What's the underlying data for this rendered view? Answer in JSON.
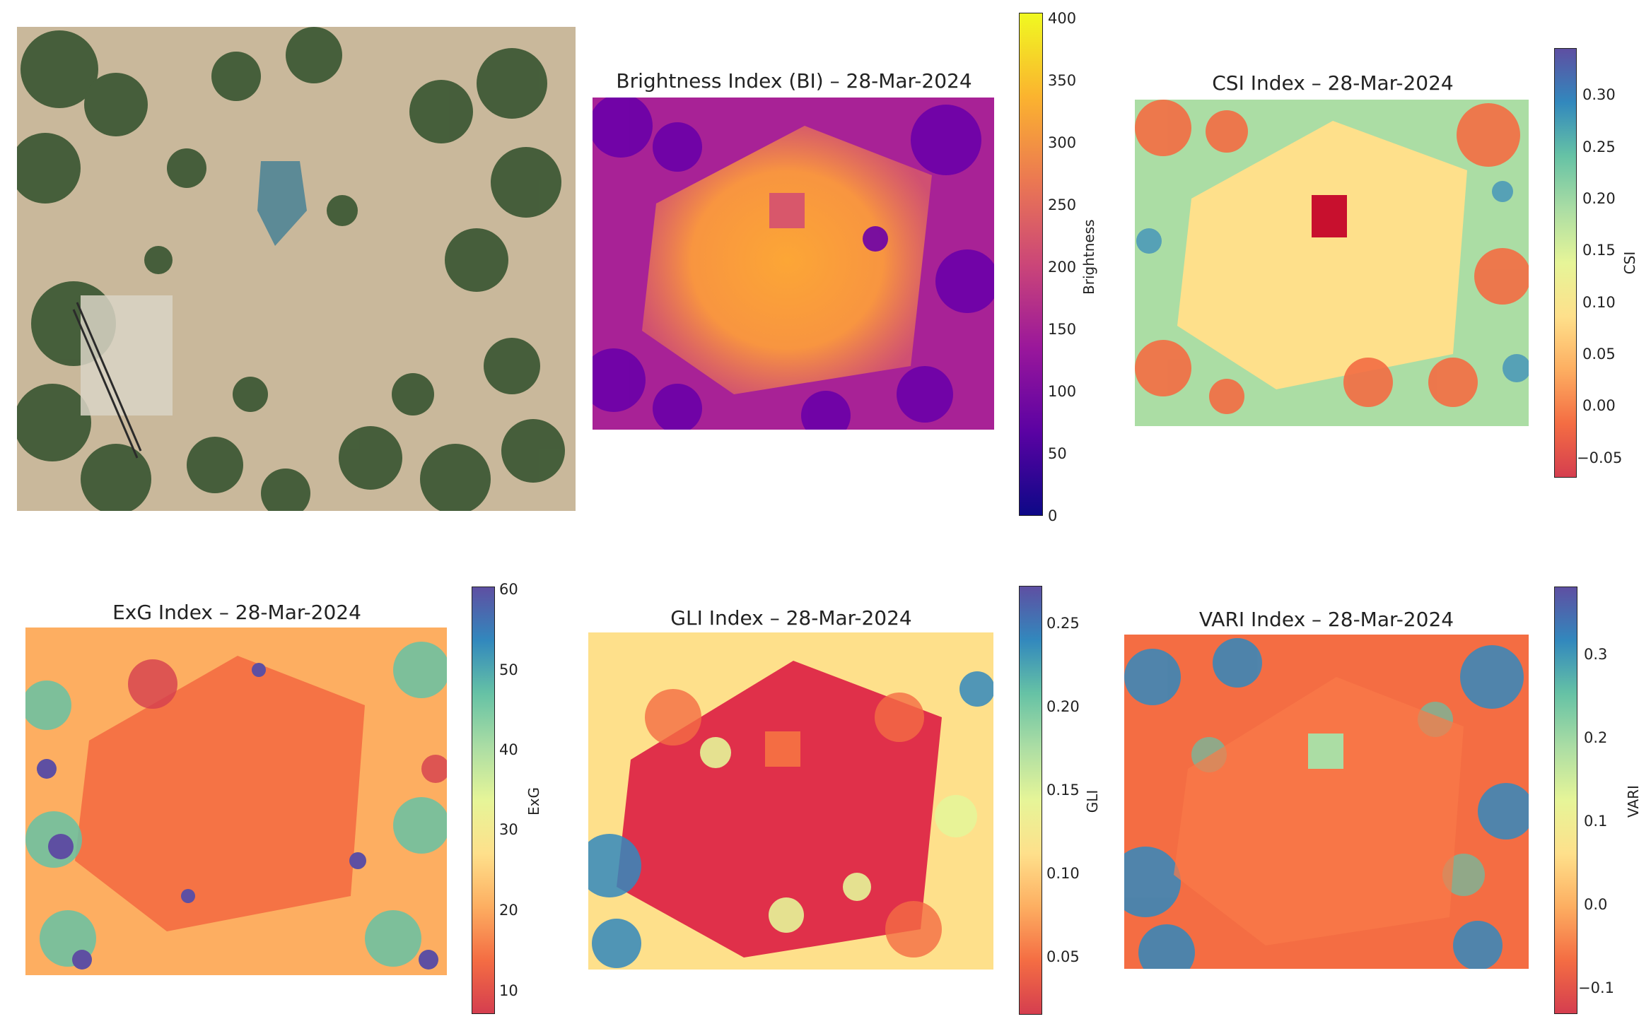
{
  "photo": {
    "description_icon": "aerial-photo"
  },
  "panels": [
    {
      "id": "bi",
      "title": "Brightness Index (BI) – 28-Mar-2024",
      "colorbar_label": "Brightness",
      "ticks": [
        "400",
        "350",
        "300",
        "250",
        "200",
        "150",
        "100",
        "50",
        "0"
      ],
      "colors": [
        "#0d0887",
        "#5b02a3",
        "#9a179b",
        "#cb4678",
        "#eb7852",
        "#fbb32f",
        "#f0f921"
      ]
    },
    {
      "id": "csi",
      "title": "CSI Index – 28-Mar-2024",
      "colorbar_label": "CSI",
      "ticks": [
        "0.30",
        "0.25",
        "0.20",
        "0.15",
        "0.10",
        "0.05",
        "0.00",
        "−0.05"
      ],
      "colors": [
        "#d53e4f",
        "#f46d43",
        "#fdae61",
        "#fee08b",
        "#e6f598",
        "#abdda4",
        "#66c2a5",
        "#3288bd",
        "#5e4fa2"
      ]
    },
    {
      "id": "exg",
      "title": "ExG Index – 28-Mar-2024",
      "colorbar_label": "ExG",
      "ticks": [
        "60",
        "50",
        "40",
        "30",
        "20",
        "10"
      ],
      "colors": [
        "#d53e4f",
        "#f46d43",
        "#fdae61",
        "#fee08b",
        "#e6f598",
        "#abdda4",
        "#66c2a5",
        "#3288bd",
        "#5e4fa2"
      ]
    },
    {
      "id": "gli",
      "title": "GLI Index – 28-Mar-2024",
      "colorbar_label": "GLI",
      "ticks": [
        "0.25",
        "0.20",
        "0.15",
        "0.10",
        "0.05"
      ],
      "colors": [
        "#d53e4f",
        "#f46d43",
        "#fdae61",
        "#fee08b",
        "#e6f598",
        "#abdda4",
        "#66c2a5",
        "#3288bd",
        "#5e4fa2"
      ]
    },
    {
      "id": "vari",
      "title": "VARI Index – 28-Mar-2024",
      "colorbar_label": "VARI",
      "ticks": [
        "0.3",
        "0.2",
        "0.1",
        "0.0",
        "−0.1"
      ],
      "colors": [
        "#d53e4f",
        "#f46d43",
        "#fdae61",
        "#fee08b",
        "#e6f598",
        "#abdda4",
        "#66c2a5",
        "#3288bd",
        "#5e4fa2"
      ]
    }
  ]
}
